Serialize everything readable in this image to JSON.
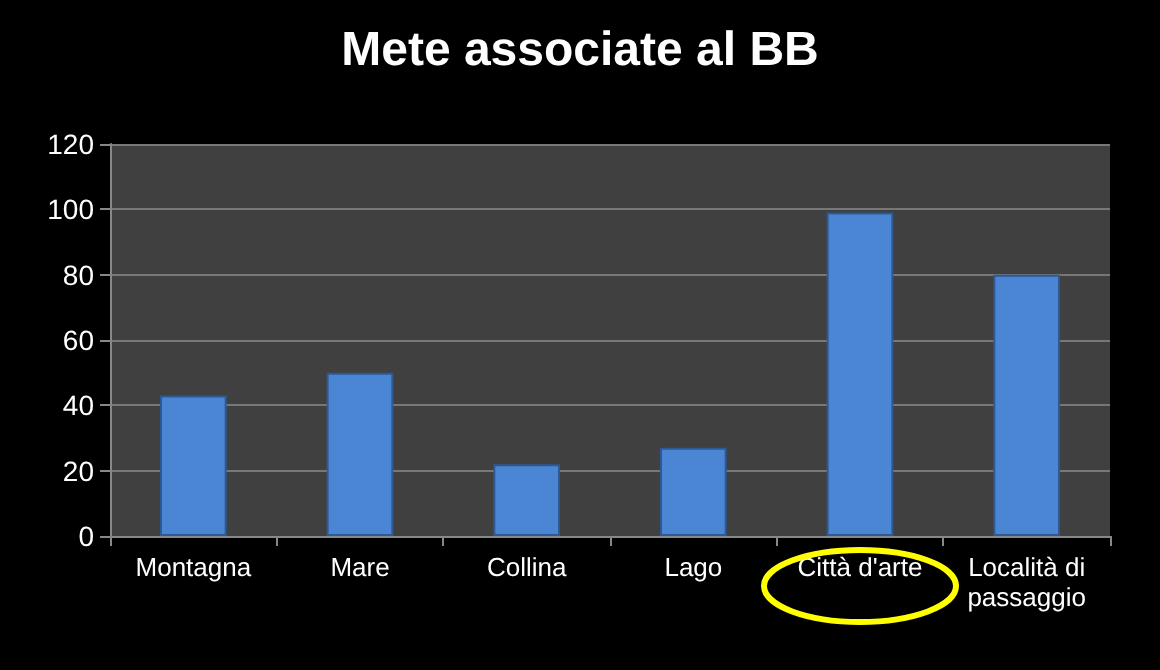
{
  "chart_data": {
    "type": "bar",
    "title": "Mete associate al BB",
    "categories": [
      "Montagna",
      "Mare",
      "Collina",
      "Lago",
      "Città d'arte",
      "Località di\npassaggio"
    ],
    "values": [
      43,
      50,
      22,
      27,
      99,
      80
    ],
    "color": "#4a86d4",
    "ylim": [
      0,
      120
    ],
    "yticks": [
      0,
      20,
      40,
      60,
      80,
      100,
      120
    ],
    "grid": "y"
  }
}
